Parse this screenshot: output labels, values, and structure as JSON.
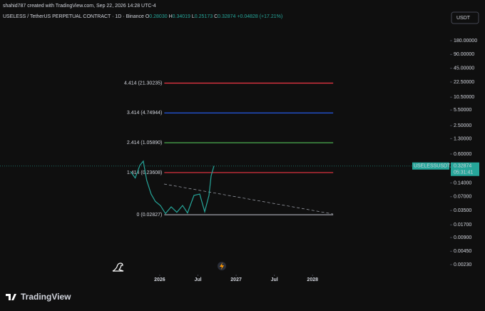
{
  "credit": "shahid787 created with TradingView.com, Sep 22, 2026 14:28 UTC-4",
  "currency": "USDT",
  "brand": "TradingView",
  "chart_data": {
    "type": "line",
    "title": "USELESS / TetherUS PERPETUAL CONTRACT · 1D · Binance",
    "ohlc": [
      "O",
      "0.28030",
      "H",
      "0.34019",
      "L",
      "0.25173",
      "C",
      "0.32874"
    ],
    "change": "+0.04828 (+17.21%)",
    "log_scale": true,
    "x": [
      2025.617,
      2025.68,
      2025.74,
      2025.785,
      2025.83,
      2025.888,
      2025.944,
      2026.009,
      2026.075,
      2026.15,
      2026.224,
      2026.299,
      2026.364,
      2026.449,
      2026.523,
      2026.589,
      2026.645,
      2026.673,
      2026.71
    ],
    "series": [
      {
        "name": "USELESSUSDT.P",
        "color": "#26a69a",
        "values": [
          0.25,
          0.18,
          0.34,
          0.42,
          0.16,
          0.08,
          0.055,
          0.045,
          0.03,
          0.042,
          0.032,
          0.045,
          0.031,
          0.075,
          0.08,
          0.033,
          0.075,
          0.2,
          0.33
        ]
      }
    ],
    "last_price": {
      "value": 0.32874,
      "countdown": "05:31:41"
    },
    "xlim": [
      2023.91,
      2029.79
    ],
    "xticks": [
      2026,
      {
        "value": 2026.5,
        "label": "Jul"
      },
      2027,
      {
        "value": 2027.5,
        "label": "Jul"
      },
      2028
    ],
    "ylim": [
      0.00139,
      475
    ],
    "yticks": [
      {
        "value": 180,
        "label": "180.00000"
      },
      {
        "value": 90,
        "label": "90.00000"
      },
      {
        "value": 45,
        "label": "45.00000"
      },
      {
        "value": 22.5,
        "label": "22.50000"
      },
      {
        "value": 10.5,
        "label": "10.50000"
      },
      {
        "value": 5.5,
        "label": "5.50000"
      },
      {
        "value": 2.5,
        "label": "2.50000"
      },
      {
        "value": 1.3,
        "label": "1.30000"
      },
      {
        "value": 0.6,
        "label": "0.60000"
      },
      {
        "value": 0.14,
        "label": "0.14000"
      },
      {
        "value": 0.07,
        "label": "0.07000"
      },
      {
        "value": 0.035,
        "label": "0.03500"
      },
      {
        "value": 0.017,
        "label": "0.01700"
      },
      {
        "value": 0.009,
        "label": "0.00900"
      },
      {
        "value": 0.0045,
        "label": "0.00450"
      },
      {
        "value": 0.0023,
        "label": "0.00230"
      }
    ],
    "fib_range": [
      2026.06,
      2028.27
    ],
    "fib_levels": [
      {
        "label": "4.414 (21.30235)",
        "value": 21.30235,
        "color": "#f23645"
      },
      {
        "label": "3.414 (4.74944)",
        "value": 4.74944,
        "color": "#2962ff"
      },
      {
        "label": "2.414 (1.05890)",
        "value": 1.0589,
        "color": "#4caf50"
      },
      {
        "label": "1.414 (0.23608)",
        "value": 0.23608,
        "color": "#f23645"
      },
      {
        "label": "0 (0.02827)",
        "value": 0.02827,
        "color": "#b2b5be"
      }
    ]
  }
}
